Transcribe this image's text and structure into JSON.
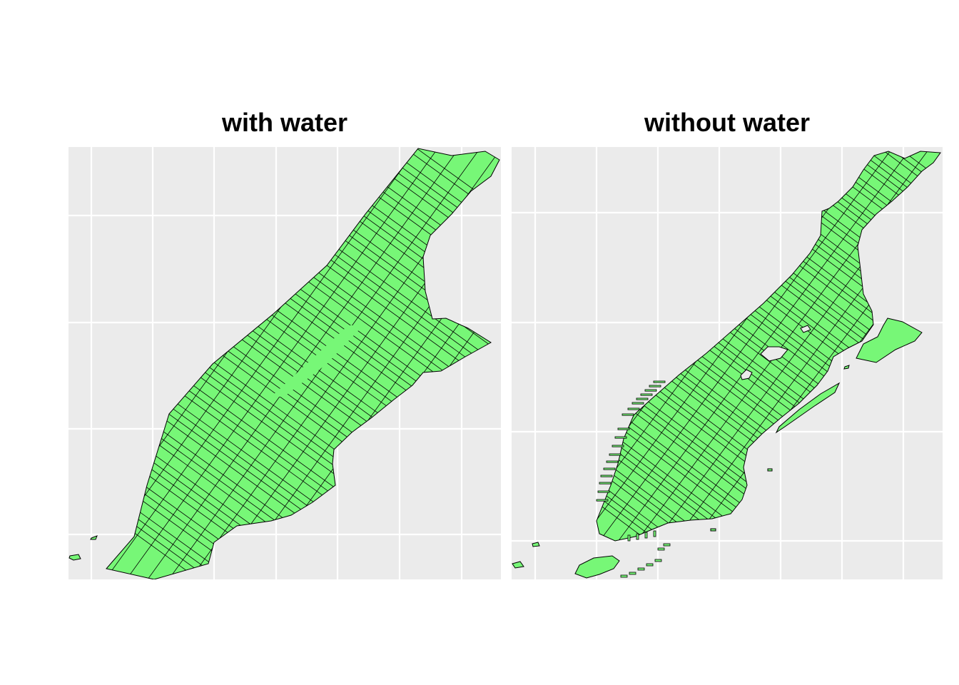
{
  "panels": [
    {
      "title": "with water"
    },
    {
      "title": "without water"
    }
  ],
  "colors": {
    "panel_background": "#ebebeb",
    "grid_line": "#ffffff",
    "land_fill": "#77f777",
    "tract_border": "#000000"
  },
  "legend": "none",
  "axes": "hidden",
  "grid": true
}
